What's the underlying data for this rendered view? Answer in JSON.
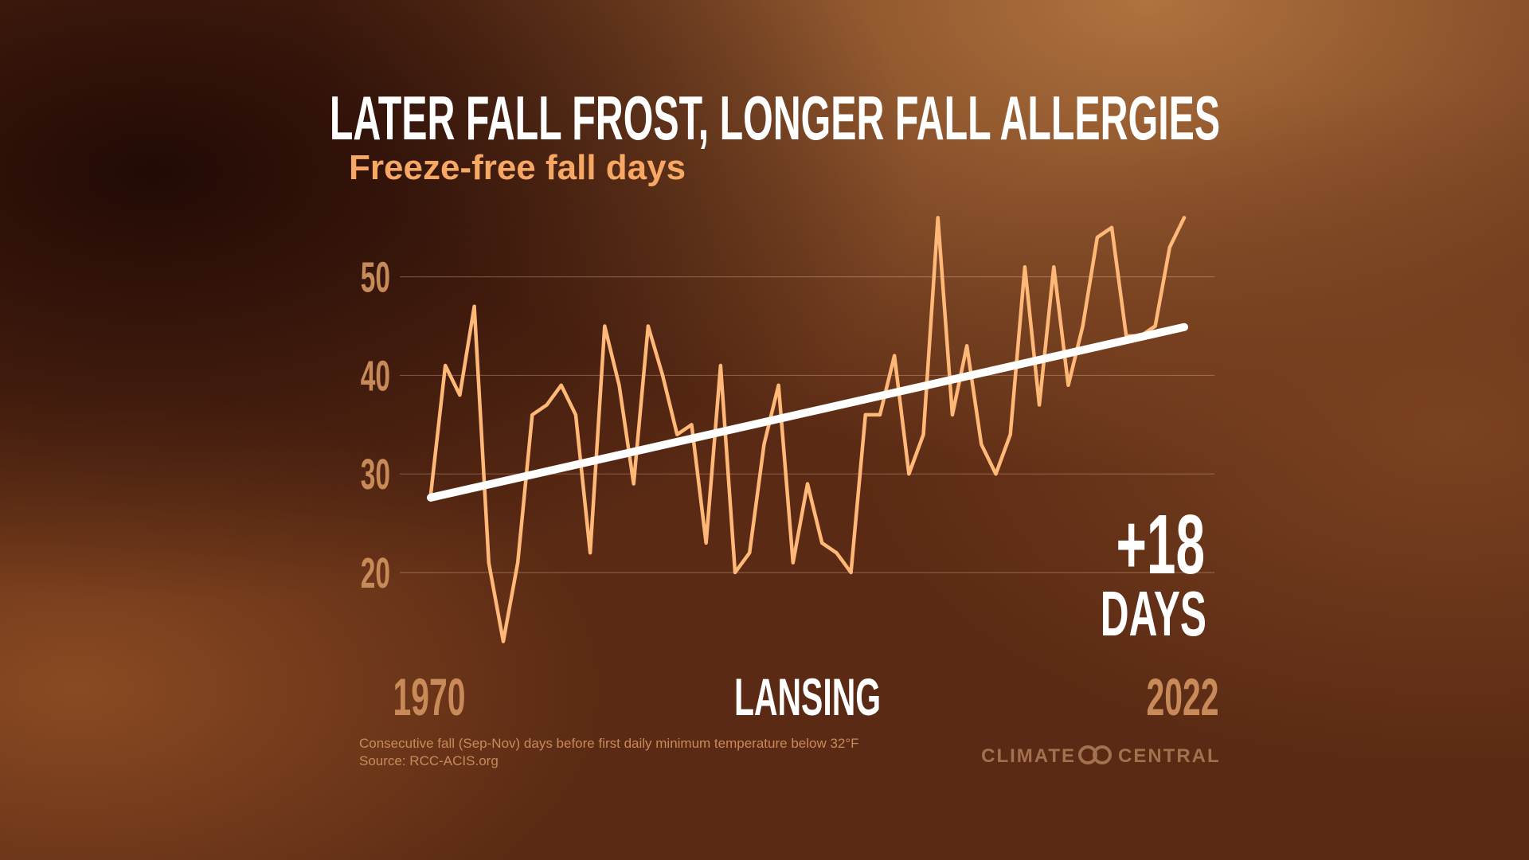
{
  "chart_data": {
    "type": "line",
    "title": "LATER FALL FROST, LONGER FALL ALLERGIES",
    "subtitle": "Freeze-free fall days",
    "location": "LANSING",
    "annotation": [
      "+18",
      "DAYS"
    ],
    "notes": [
      "Consecutive fall (Sep-Nov) days before first daily minimum temperature below 32°F",
      "Source: RCC-ACIS.org"
    ],
    "x": [
      1970,
      1971,
      1972,
      1973,
      1974,
      1975,
      1976,
      1977,
      1978,
      1979,
      1980,
      1981,
      1982,
      1983,
      1984,
      1985,
      1986,
      1987,
      1988,
      1989,
      1990,
      1991,
      1992,
      1993,
      1994,
      1995,
      1996,
      1997,
      1998,
      1999,
      2000,
      2001,
      2002,
      2003,
      2004,
      2005,
      2006,
      2007,
      2008,
      2009,
      2010,
      2011,
      2012,
      2013,
      2014,
      2015,
      2016,
      2017,
      2018,
      2019,
      2020,
      2021,
      2022
    ],
    "values": [
      28,
      41,
      38,
      47,
      21,
      13,
      21,
      36,
      37,
      39,
      36,
      22,
      45,
      39,
      29,
      45,
      40,
      34,
      35,
      23,
      41,
      20,
      22,
      33,
      39,
      21,
      29,
      23,
      22,
      20,
      36,
      36,
      42,
      30,
      34,
      56,
      36,
      43,
      33,
      30,
      34,
      51,
      37,
      51,
      39,
      45,
      54,
      55,
      44,
      44,
      45,
      53,
      56
    ],
    "color": "#ffb877",
    "trend": {
      "x": [
        1970,
        2022
      ],
      "values": [
        27.6,
        44.9
      ],
      "color": "#ffffff"
    },
    "xlim": [
      1970,
      2022
    ],
    "xticks": [
      1970,
      2022
    ],
    "ylim": [
      12,
      57
    ],
    "yticks": [
      20,
      30,
      40,
      50
    ],
    "grid": true
  },
  "logo": [
    "CLIMATE",
    "CENTRAL"
  ]
}
